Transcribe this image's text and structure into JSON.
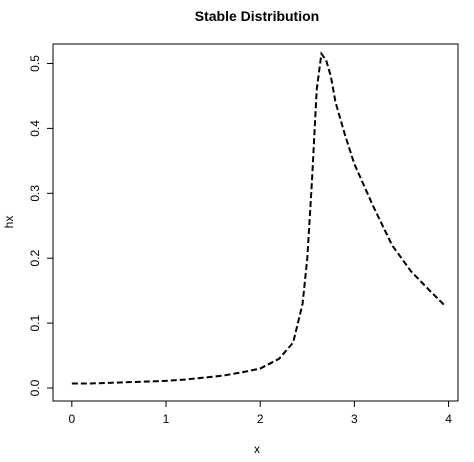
{
  "chart_data": {
    "type": "line",
    "title": "Stable Distribution",
    "xlabel": "x",
    "ylabel": "hx",
    "xlim": [
      -0.2,
      4.1
    ],
    "ylim": [
      -0.02,
      0.53
    ],
    "xticks": [
      0,
      1,
      2,
      3,
      4
    ],
    "yticks": [
      0.0,
      0.1,
      0.2,
      0.3,
      0.4,
      0.5
    ],
    "xtick_labels": [
      "0",
      "1",
      "2",
      "3",
      "4"
    ],
    "ytick_labels": [
      "0.0",
      "0.1",
      "0.2",
      "0.3",
      "0.4",
      "0.5"
    ],
    "grid": false,
    "line_style": "dashed",
    "series": [
      {
        "x": [
          0.0,
          0.2,
          0.4,
          0.6,
          0.8,
          1.0,
          1.2,
          1.4,
          1.6,
          1.8,
          2.0,
          2.2,
          2.35,
          2.45,
          2.5,
          2.55,
          2.6,
          2.65,
          2.7,
          2.75,
          2.8,
          2.9,
          3.0,
          3.2,
          3.4,
          3.6,
          3.8,
          3.96
        ],
        "values": [
          0.007,
          0.007,
          0.008,
          0.009,
          0.01,
          0.011,
          0.013,
          0.016,
          0.019,
          0.024,
          0.03,
          0.045,
          0.07,
          0.13,
          0.2,
          0.32,
          0.46,
          0.515,
          0.505,
          0.48,
          0.44,
          0.39,
          0.345,
          0.28,
          0.22,
          0.18,
          0.15,
          0.127
        ]
      }
    ]
  }
}
